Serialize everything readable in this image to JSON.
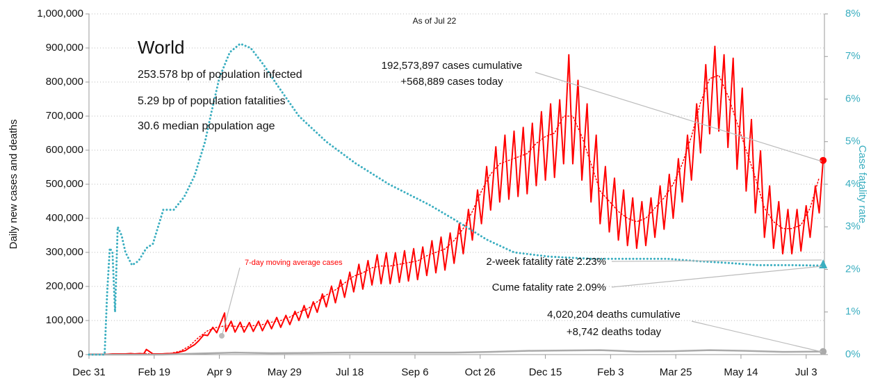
{
  "chart_data": {
    "type": "line",
    "title": "World",
    "subtitle": "As of Jul 22",
    "info": [
      "253.578 bp of population infected",
      "5.29 bp of population fatalities",
      "30.6 median population age"
    ],
    "annotations": [
      "192,573,897 cases cumulative",
      "+568,889 cases today",
      "2-week fatality rate 2.23%",
      "Cume fatality rate 2.09%",
      "4,020,204 deaths cumulative",
      "+8,742 deaths today"
    ],
    "y_label": "Daily new cases and deaths",
    "y2_label": "Case fatality rate",
    "grid": true,
    "xlim": [
      0,
      564
    ],
    "xticks": [
      {
        "value": 0,
        "label": "Dec 31"
      },
      {
        "value": 50,
        "label": "Feb 19"
      },
      {
        "value": 100,
        "label": "Apr 9"
      },
      {
        "value": 150,
        "label": "May 29"
      },
      {
        "value": 200,
        "label": "Jul 18"
      },
      {
        "value": 250,
        "label": "Sep 6"
      },
      {
        "value": 300,
        "label": "Oct 26"
      },
      {
        "value": 350,
        "label": "Dec 15"
      },
      {
        "value": 400,
        "label": "Feb 3"
      },
      {
        "value": 450,
        "label": "Mar 25"
      },
      {
        "value": 500,
        "label": "May 14"
      },
      {
        "value": 550,
        "label": "Jul 3"
      }
    ],
    "ylim": [
      0,
      1000000
    ],
    "yticks": [
      0,
      {
        "value": 100000,
        "label": "100,000"
      },
      {
        "value": 200000,
        "label": "200,000"
      },
      {
        "value": 300000,
        "label": "300,000"
      },
      {
        "value": 400000,
        "label": "400,000"
      },
      {
        "value": 500000,
        "label": "500,000"
      },
      {
        "value": 600000,
        "label": "600,000"
      },
      {
        "value": 700000,
        "label": "700,000"
      },
      {
        "value": 800000,
        "label": "800,000"
      },
      {
        "value": 900000,
        "label": "900,000"
      },
      {
        "value": 1000000,
        "label": "1,000,000"
      }
    ],
    "y2lim": [
      0,
      8
    ],
    "y2ticks": [
      {
        "value": 0,
        "label": "0%"
      },
      {
        "value": 1,
        "label": "1%"
      },
      {
        "value": 2,
        "label": "2%"
      },
      {
        "value": 3,
        "label": "3%"
      },
      {
        "value": 4,
        "label": "4%"
      },
      {
        "value": 5,
        "label": "5%"
      },
      {
        "value": 6,
        "label": "6%"
      },
      {
        "value": 7,
        "label": "7%"
      },
      {
        "value": 8,
        "label": "8%"
      }
    ],
    "series": [
      {
        "color": "#ff0000",
        "style": "solid",
        "width": 2,
        "x": [
          0,
          4,
          7,
          11,
          14,
          18,
          21,
          25,
          28,
          32,
          35,
          39,
          42,
          44,
          49,
          53,
          56,
          60,
          63,
          67,
          70,
          74,
          77,
          81,
          84,
          88,
          91,
          95,
          98,
          104,
          105,
          109,
          112,
          116,
          119,
          123,
          126,
          130,
          133,
          137,
          140,
          144,
          147,
          151,
          154,
          158,
          161,
          165,
          168,
          172,
          175,
          179,
          182,
          186,
          189,
          193,
          196,
          200,
          203,
          207,
          210,
          214,
          217,
          221,
          224,
          228,
          231,
          235,
          238,
          242,
          245,
          249,
          252,
          256,
          259,
          263,
          266,
          270,
          273,
          277,
          280,
          284,
          287,
          291,
          294,
          298,
          301,
          305,
          308,
          312,
          315,
          319,
          322,
          326,
          329,
          333,
          336,
          340,
          343,
          347,
          350,
          354,
          357,
          361,
          364,
          368,
          371,
          375,
          378,
          382,
          385,
          389,
          392,
          396,
          399,
          403,
          406,
          410,
          413,
          417,
          420,
          424,
          427,
          431,
          434,
          438,
          441,
          445,
          448,
          452,
          455,
          459,
          462,
          466,
          469,
          473,
          476,
          480,
          483,
          487,
          490,
          494,
          497,
          501,
          504,
          508,
          511,
          515,
          518,
          522,
          525,
          529,
          532,
          536,
          539,
          543,
          546,
          550,
          553,
          557,
          560,
          563
        ],
        "values": [
          1000,
          1000,
          1000,
          1000,
          1000,
          2000,
          2000,
          2000,
          2000,
          3000,
          2000,
          3000,
          2000,
          15000,
          2000,
          2000,
          2000,
          3000,
          3000,
          5000,
          8000,
          12000,
          20000,
          29000,
          40000,
          58000,
          56000,
          80000,
          64000,
          122000,
          68000,
          98000,
          66000,
          95000,
          66000,
          94000,
          68000,
          98000,
          70000,
          101000,
          76000,
          109000,
          80000,
          115000,
          88000,
          127000,
          100000,
          144000,
          108000,
          155000,
          124000,
          178000,
          140000,
          201000,
          152000,
          219000,
          168000,
          242000,
          184000,
          265000,
          192000,
          276000,
          204000,
          293000,
          208000,
          299000,
          208000,
          299000,
          212000,
          305000,
          216000,
          311000,
          220000,
          316000,
          232000,
          334000,
          240000,
          345000,
          248000,
          357000,
          268000,
          385000,
          296000,
          426000,
          336000,
          483000,
          384000,
          552000,
          424000,
          610000,
          448000,
          644000,
          456000,
          656000,
          464000,
          667000,
          472000,
          679000,
          496000,
          713000,
          512000,
          736000,
          520000,
          748000,
          560000,
          880000,
          560000,
          805000,
          512000,
          736000,
          448000,
          644000,
          384000,
          552000,
          360000,
          518000,
          336000,
          483000,
          320000,
          460000,
          312000,
          449000,
          320000,
          460000,
          344000,
          495000,
          368000,
          529000,
          400000,
          575000,
          448000,
          644000,
          512000,
          736000,
          592000,
          851000,
          648000,
          905000,
          656000,
          880000,
          608000,
          870000,
          544000,
          782000,
          480000,
          690000,
          416000,
          598000,
          344000,
          495000,
          312000,
          449000,
          296000,
          426000,
          296000,
          426000,
          304000,
          437000,
          344000,
          495000,
          416000,
          570000
        ]
      },
      {
        "name": "7-day moving average cases",
        "color": "#ff0000",
        "style": "dotted",
        "width": 1.5,
        "x": [
          0,
          7,
          14,
          21,
          28,
          35,
          42,
          49,
          56,
          63,
          70,
          77,
          84,
          91,
          98,
          105,
          112,
          119,
          126,
          133,
          140,
          147,
          154,
          161,
          168,
          175,
          182,
          189,
          196,
          203,
          210,
          217,
          224,
          231,
          238,
          245,
          252,
          259,
          266,
          273,
          280,
          287,
          294,
          301,
          308,
          315,
          322,
          329,
          336,
          343,
          350,
          357,
          364,
          371,
          378,
          385,
          392,
          399,
          406,
          413,
          420,
          427,
          434,
          441,
          448,
          455,
          462,
          469,
          476,
          483,
          490,
          497,
          504,
          511,
          518,
          525,
          532,
          539,
          546,
          553,
          560
        ],
        "values": [
          1000,
          1000,
          1000,
          2000,
          2000,
          2000,
          3000,
          2000,
          2000,
          4000,
          10000,
          25000,
          50000,
          70000,
          80000,
          85000,
          83000,
          82000,
          85000,
          88000,
          95000,
          100000,
          110000,
          125000,
          135000,
          155000,
          175000,
          190000,
          210000,
          230000,
          240000,
          255000,
          260000,
          260000,
          265000,
          270000,
          275000,
          290000,
          300000,
          310000,
          335000,
          370000,
          420000,
          480000,
          530000,
          560000,
          570000,
          580000,
          590000,
          620000,
          640000,
          650000,
          700000,
          700000,
          640000,
          560000,
          480000,
          450000,
          420000,
          400000,
          390000,
          400000,
          430000,
          460000,
          500000,
          560000,
          640000,
          740000,
          810000,
          820000,
          760000,
          680000,
          600000,
          520000,
          430000,
          390000,
          370000,
          370000,
          380000,
          430000,
          520000
        ]
      },
      {
        "color": "#aaaaaa",
        "style": "solid",
        "width": 2.5,
        "x": [
          0,
          28,
          56,
          84,
          112,
          140,
          168,
          196,
          224,
          252,
          280,
          308,
          336,
          364,
          392,
          420,
          448,
          476,
          504,
          532,
          563
        ],
        "values": [
          0,
          0,
          0,
          3000,
          6000,
          4000,
          5000,
          6000,
          6000,
          6000,
          6000,
          8000,
          11000,
          12000,
          13000,
          9000,
          10000,
          13000,
          11000,
          8000,
          9000
        ]
      },
      {
        "color": "#3aaec0",
        "style": "dotted",
        "width": 3,
        "axis": "y2",
        "x": [
          0,
          12,
          14,
          16,
          18,
          20,
          22,
          25,
          28,
          33,
          38,
          44,
          49,
          57,
          65,
          73,
          81,
          89,
          94,
          100,
          108,
          116,
          124,
          134,
          145,
          161,
          182,
          204,
          230,
          262,
          284,
          305,
          326,
          353,
          385,
          411,
          443,
          465,
          491,
          513,
          539,
          563
        ],
        "values": [
          0,
          0,
          1.5,
          2.5,
          2.4,
          1.0,
          3.0,
          2.8,
          2.4,
          2.1,
          2.2,
          2.5,
          2.6,
          3.4,
          3.4,
          3.7,
          4.2,
          5.0,
          5.7,
          6.5,
          7.1,
          7.3,
          7.2,
          6.8,
          6.3,
          5.6,
          5.0,
          4.5,
          4.0,
          3.5,
          3.1,
          2.7,
          2.4,
          2.3,
          2.25,
          2.25,
          2.25,
          2.2,
          2.15,
          2.1,
          2.1,
          2.09
        ]
      }
    ]
  }
}
